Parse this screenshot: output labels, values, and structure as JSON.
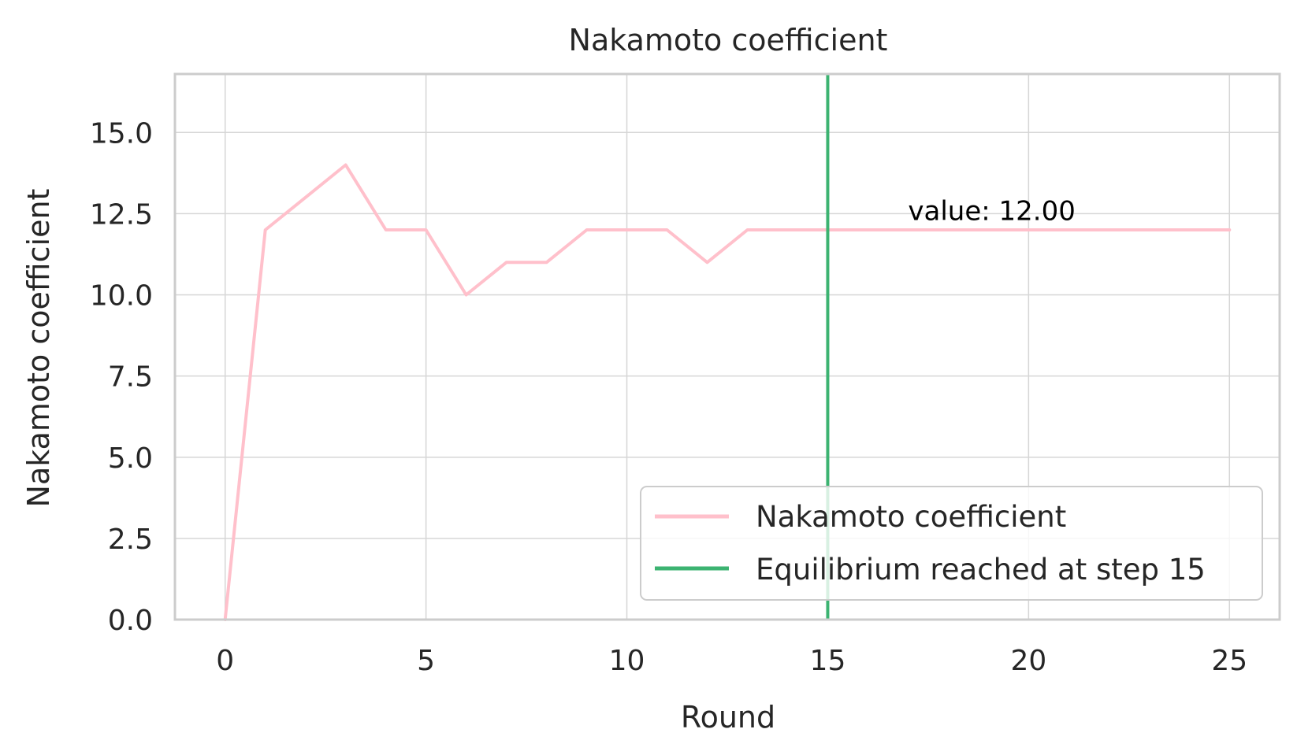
{
  "chart_data": {
    "type": "line",
    "title": "Nakamoto coefficient",
    "xlabel": "Round",
    "ylabel": "Nakamoto coefficient",
    "xlim": [
      -1.25,
      26.25
    ],
    "ylim": [
      0,
      16.8
    ],
    "xticks": [
      0,
      5,
      10,
      15,
      20,
      25
    ],
    "xtick_labels": [
      "0",
      "5",
      "10",
      "15",
      "20",
      "25"
    ],
    "yticks": [
      0,
      2.5,
      5,
      7.5,
      10,
      12.5,
      15
    ],
    "ytick_labels": [
      "0.0",
      "2.5",
      "5.0",
      "7.5",
      "10.0",
      "12.5",
      "15.0"
    ],
    "grid": true,
    "legend_position": "bottom-right",
    "series": [
      {
        "name": "Nakamoto coefficient",
        "color": "#ffc0cb",
        "x": [
          0,
          1,
          2,
          3,
          4,
          5,
          6,
          7,
          8,
          9,
          10,
          11,
          12,
          13,
          14,
          15,
          16,
          17,
          18,
          19,
          20,
          21,
          22,
          23,
          24,
          25
        ],
        "y": [
          0,
          12,
          13,
          14,
          12,
          12,
          10,
          11,
          11,
          12,
          12,
          12,
          11,
          12,
          12,
          12,
          12,
          12,
          12,
          12,
          12,
          12,
          12,
          12,
          12,
          12
        ]
      }
    ],
    "vline": {
      "name": "Equilibrium reached at step 15",
      "x": 15,
      "color": "#3cb371"
    },
    "annotation": {
      "text": "value: 12.00",
      "x": 17,
      "y": 12.3
    }
  }
}
